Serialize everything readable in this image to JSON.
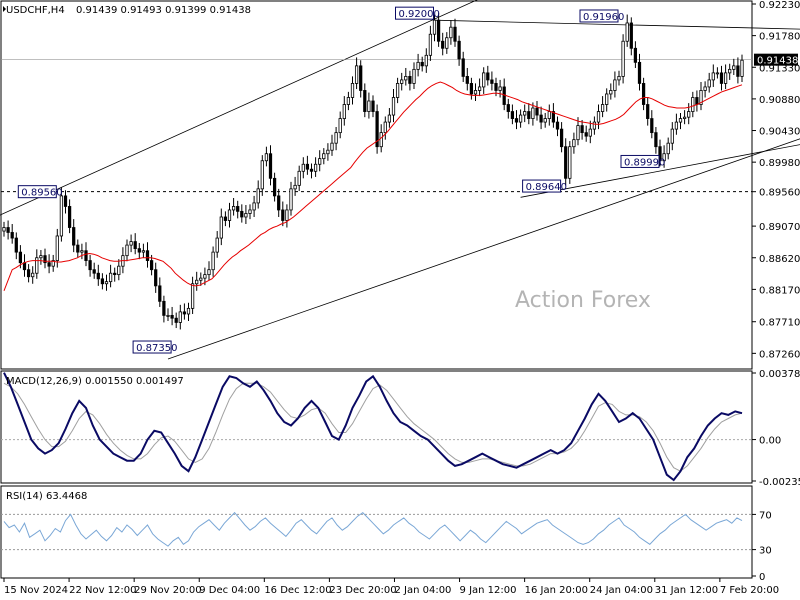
{
  "header": {
    "symbol": "USDCHF,H4",
    "ohlc": "0.91439 0.91493 0.91399 0.91438"
  },
  "watermark": "Action Forex",
  "colors": {
    "candle": "#000000",
    "ma": "#e60000",
    "channel": "#000000",
    "macd": "#0a0a64",
    "signal": "#a0a0a0",
    "rsi": "#7aa7d6",
    "current_price_tag": "#000000"
  },
  "chart_data": [
    {
      "type": "line",
      "panel": "price",
      "title": "USDCHF,H4",
      "ylim": [
        0.8708,
        0.9223
      ],
      "y_ticks": [
        "0.92230",
        "0.91780",
        "0.91330",
        "0.90880",
        "0.90430",
        "0.89980",
        "0.89560",
        "0.89070",
        "0.88620",
        "0.88170",
        "0.87710",
        "0.87260"
      ],
      "current_price": "0.91438",
      "reference_level": "0.89560",
      "annotations": [
        "0.92000",
        "0.91960",
        "0.89560",
        "0.89640",
        "0.89990",
        "0.87350"
      ],
      "x_ticks": [
        "15 Nov 2024",
        "22 Nov 12:00",
        "29 Nov 20:00",
        "9 Dec 04:00",
        "16 Dec 12:00",
        "23 Dec 20:00",
        "2 Jan 04:00",
        "9 Jan 12:00",
        "16 Jan 20:00",
        "24 Jan 04:00",
        "31 Jan 12:00",
        "7 Feb 20:00"
      ],
      "series": [
        {
          "values": [
            0.8905,
            0.8898,
            0.889,
            0.887,
            0.8855,
            0.8845,
            0.8835,
            0.884,
            0.8862,
            0.8865,
            0.8855,
            0.885,
            0.8858,
            0.8893,
            0.895,
            0.8935,
            0.8905,
            0.888,
            0.887,
            0.8872,
            0.8858,
            0.8845,
            0.884,
            0.8832,
            0.8825,
            0.8828,
            0.884,
            0.8838,
            0.885,
            0.8865,
            0.888,
            0.8885,
            0.8875,
            0.887,
            0.8872,
            0.8858,
            0.8845,
            0.8822,
            0.88,
            0.878,
            0.878,
            0.8776,
            0.877,
            0.8785,
            0.8782,
            0.879,
            0.8825,
            0.883,
            0.8833,
            0.8838,
            0.8845,
            0.887,
            0.889,
            0.892,
            0.8915,
            0.893,
            0.8935,
            0.8928,
            0.892,
            0.8925,
            0.893,
            0.894,
            0.896,
            0.9,
            0.901,
            0.8975,
            0.895,
            0.893,
            0.8915,
            0.893,
            0.896,
            0.8965,
            0.8985,
            0.8995,
            0.8988,
            0.8985,
            0.8995,
            0.9003,
            0.901,
            0.9015,
            0.9025,
            0.904,
            0.906,
            0.908,
            0.909,
            0.911,
            0.9135,
            0.91,
            0.907,
            0.9085,
            0.907,
            0.902,
            0.904,
            0.9055,
            0.9065,
            0.909,
            0.911,
            0.9115,
            0.912,
            0.911,
            0.913,
            0.914,
            0.9135,
            0.915,
            0.918,
            0.92,
            0.917,
            0.916,
            0.9175,
            0.919,
            0.917,
            0.9145,
            0.912,
            0.911,
            0.9095,
            0.91,
            0.9105,
            0.9125,
            0.9115,
            0.911,
            0.91,
            0.9105,
            0.908,
            0.907,
            0.906,
            0.9055,
            0.9065,
            0.907,
            0.906,
            0.9075,
            0.9065,
            0.9055,
            0.906,
            0.907,
            0.9055,
            0.9045,
            0.902,
            0.8975,
            0.902,
            0.903,
            0.905,
            0.904,
            0.9035,
            0.9045,
            0.9055,
            0.907,
            0.908,
            0.9095,
            0.91,
            0.9115,
            0.912,
            0.917,
            0.9196,
            0.916,
            0.914,
            0.911,
            0.908,
            0.906,
            0.904,
            0.902,
            0.9,
            0.901,
            0.9025,
            0.9045,
            0.9055,
            0.906,
            0.9062,
            0.907,
            0.909,
            0.908,
            0.91,
            0.9105,
            0.9115,
            0.9125,
            0.9125,
            0.911,
            0.9125,
            0.913,
            0.9135,
            0.912,
            0.9143
          ]
        },
        {
          "name": "MA",
          "values": [
            0.8815,
            0.883,
            0.8845,
            0.8848,
            0.8852,
            0.8855,
            0.8857,
            0.8858,
            0.8858,
            0.8858,
            0.8857,
            0.8857,
            0.8857,
            0.8856,
            0.8856,
            0.8857,
            0.8858,
            0.886,
            0.8862,
            0.8865,
            0.8867,
            0.8868,
            0.8867,
            0.8865,
            0.8862,
            0.886,
            0.8858,
            0.8857,
            0.8857,
            0.8858,
            0.8858,
            0.8859,
            0.886,
            0.8861,
            0.8862,
            0.8862,
            0.8862,
            0.8861,
            0.8859,
            0.8857,
            0.8852,
            0.8847,
            0.884,
            0.8835,
            0.883,
            0.8826,
            0.8823,
            0.8822,
            0.8823,
            0.8826,
            0.8829,
            0.8832,
            0.8838,
            0.8845,
            0.8852,
            0.8858,
            0.8863,
            0.8867,
            0.8872,
            0.8876,
            0.888,
            0.8885,
            0.889,
            0.8895,
            0.8898,
            0.8902,
            0.8905,
            0.8907,
            0.891,
            0.8912,
            0.8916,
            0.892,
            0.8925,
            0.893,
            0.8935,
            0.894,
            0.8945,
            0.895,
            0.8955,
            0.896,
            0.8965,
            0.897,
            0.8975,
            0.898,
            0.8985,
            0.899,
            0.8998,
            0.9005,
            0.9012,
            0.9018,
            0.9022,
            0.9026,
            0.903,
            0.9035,
            0.9041,
            0.9048,
            0.9055,
            0.9062,
            0.9069,
            0.9075,
            0.9081,
            0.9087,
            0.9092,
            0.9098,
            0.9103,
            0.9107,
            0.911,
            0.9112,
            0.911,
            0.9107,
            0.9104,
            0.91,
            0.9097,
            0.9095,
            0.9094,
            0.9093,
            0.9093,
            0.9093,
            0.9094,
            0.9095,
            0.9096,
            0.9096,
            0.9095,
            0.9093,
            0.9091,
            0.9089,
            0.9087,
            0.9084,
            0.9082,
            0.908,
            0.9078,
            0.9076,
            0.9074,
            0.9072,
            0.907,
            0.9068,
            0.9066,
            0.9064,
            0.9062,
            0.906,
            0.9058,
            0.9056,
            0.9055,
            0.9054,
            0.9053,
            0.9052,
            0.9052,
            0.9053,
            0.9055,
            0.9057,
            0.9059,
            0.9062,
            0.9066,
            0.9072,
            0.9078,
            0.9084,
            0.9088,
            0.909,
            0.909,
            0.9088,
            0.9085,
            0.9082,
            0.9079,
            0.9077,
            0.9076,
            0.9075,
            0.9075,
            0.9075,
            0.9076,
            0.9078,
            0.908,
            0.9083,
            0.9086,
            0.9089,
            0.9092,
            0.9095,
            0.9098,
            0.91,
            0.9102,
            0.9104,
            0.9106,
            0.9108
          ]
        }
      ]
    },
    {
      "type": "line",
      "panel": "macd",
      "title": "MACD(12,26,9) 0.001550 0.001497",
      "ylim": [
        -0.002356,
        0.003785
      ],
      "y_ticks": [
        "0.003785",
        "0.00",
        "-0.002356"
      ],
      "series": [
        {
          "values": [
            0.0038,
            0.003,
            0.002,
            0.001,
            0.0,
            -0.0005,
            -0.0008,
            -0.0006,
            -0.0002,
            0.0006,
            0.0015,
            0.0022,
            0.0018,
            0.0008,
            0.0,
            -0.0004,
            -0.0008,
            -0.001,
            -0.0012,
            -0.0012,
            -0.0008,
            0.0,
            0.0005,
            0.0004,
            -0.0002,
            -0.0008,
            -0.0015,
            -0.0018,
            -0.001,
            0.0,
            0.001,
            0.002,
            0.003,
            0.0036,
            0.0035,
            0.0032,
            0.003,
            0.0033,
            0.0028,
            0.0022,
            0.0015,
            0.001,
            0.0008,
            0.0012,
            0.0018,
            0.0022,
            0.0018,
            0.001,
            0.0002,
            0.0,
            0.0008,
            0.0018,
            0.0025,
            0.0033,
            0.0036,
            0.003,
            0.0022,
            0.0015,
            0.001,
            0.0008,
            0.0005,
            0.0002,
            0.0,
            -0.0004,
            -0.0008,
            -0.0012,
            -0.0015,
            -0.0014,
            -0.0012,
            -0.001,
            -0.0008,
            -0.001,
            -0.0012,
            -0.0014,
            -0.0015,
            -0.0016,
            -0.0014,
            -0.0012,
            -0.001,
            -0.0008,
            -0.0006,
            -0.0008,
            -0.0006,
            -0.0002,
            0.0005,
            0.0012,
            0.002,
            0.0026,
            0.0022,
            0.0016,
            0.001,
            0.0012,
            0.0015,
            0.0012,
            0.0006,
            0.0,
            -0.001,
            -0.002,
            -0.0023,
            -0.0018,
            -0.001,
            -0.0005,
            0.0002,
            0.0008,
            0.0012,
            0.0015,
            0.0014,
            0.0016,
            0.0015
          ]
        },
        {
          "values": [
            0.0032,
            0.003,
            0.0026,
            0.002,
            0.0013,
            0.0006,
            0.0,
            -0.0004,
            -0.0004,
            -0.0001,
            0.0005,
            0.0012,
            0.0016,
            0.0014,
            0.0009,
            0.0003,
            -0.0002,
            -0.0006,
            -0.0009,
            -0.0011,
            -0.0011,
            -0.0008,
            -0.0003,
            0.0001,
            0.0002,
            -0.0001,
            -0.0006,
            -0.0011,
            -0.0013,
            -0.0011,
            -0.0005,
            0.0004,
            0.0014,
            0.0023,
            0.0029,
            0.0032,
            0.0032,
            0.0032,
            0.003,
            0.0027,
            0.0022,
            0.0017,
            0.0013,
            0.0012,
            0.0014,
            0.0017,
            0.0018,
            0.0015,
            0.0009,
            0.0004,
            0.0004,
            0.0009,
            0.0016,
            0.0023,
            0.0029,
            0.0031,
            0.0028,
            0.0023,
            0.0018,
            0.0013,
            0.0009,
            0.0006,
            0.0003,
            0.0,
            -0.0004,
            -0.0008,
            -0.0011,
            -0.0013,
            -0.0013,
            -0.0012,
            -0.0011,
            -0.0011,
            -0.0012,
            -0.0013,
            -0.0014,
            -0.0015,
            -0.0015,
            -0.0014,
            -0.0012,
            -0.001,
            -0.0008,
            -0.0008,
            -0.0007,
            -0.0005,
            -0.0001,
            0.0005,
            0.0012,
            0.0019,
            0.0021,
            0.002,
            0.0016,
            0.0014,
            0.0014,
            0.0013,
            0.001,
            0.0005,
            -0.0002,
            -0.001,
            -0.0016,
            -0.0018,
            -0.0015,
            -0.001,
            -0.0005,
            0.0001,
            0.0006,
            0.001,
            0.0012,
            0.0014,
            0.0015
          ]
        }
      ]
    },
    {
      "type": "line",
      "panel": "rsi",
      "title": "RSI(14) 63.4468",
      "ylim": [
        0,
        100
      ],
      "y_ticks": [
        "70",
        "30",
        "0"
      ],
      "levels": [
        70,
        30
      ],
      "series": [
        {
          "values": [
            62,
            55,
            58,
            50,
            60,
            44,
            48,
            52,
            40,
            46,
            54,
            50,
            63,
            70,
            58,
            48,
            42,
            47,
            52,
            45,
            40,
            46,
            55,
            50,
            58,
            53,
            46,
            52,
            58,
            48,
            42,
            38,
            34,
            40,
            44,
            36,
            40,
            50,
            56,
            60,
            64,
            58,
            52,
            60,
            66,
            72,
            65,
            58,
            52,
            56,
            62,
            66,
            60,
            55,
            50,
            45,
            52,
            60,
            64,
            58,
            52,
            48,
            55,
            62,
            66,
            58,
            52,
            56,
            62,
            68,
            72,
            66,
            60,
            54,
            48,
            52,
            58,
            62,
            66,
            60,
            56,
            50,
            46,
            42,
            48,
            54,
            58,
            52,
            46,
            40,
            46,
            52,
            48,
            42,
            38,
            44,
            50,
            56,
            62,
            58,
            54,
            48,
            52,
            56,
            60,
            62,
            64,
            58,
            54,
            50,
            46,
            42,
            38,
            36,
            38,
            42,
            48,
            52,
            58,
            62,
            66,
            58,
            54,
            50,
            44,
            40,
            36,
            42,
            48,
            52,
            58,
            62,
            66,
            70,
            64,
            60,
            56,
            52,
            56,
            60,
            62,
            64,
            60,
            66,
            63
          ]
        }
      ]
    }
  ]
}
